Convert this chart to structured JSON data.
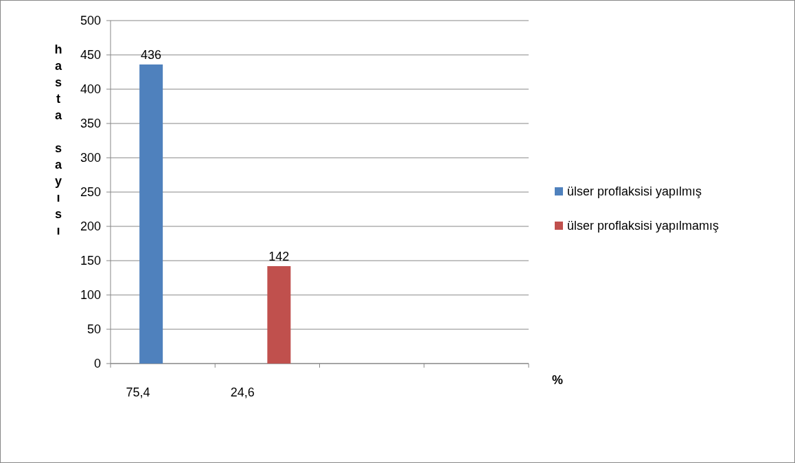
{
  "chart_data": {
    "type": "bar",
    "ylabel": "hasta sayısı",
    "xlabel": "%",
    "categories": [
      "75,4",
      "24,6",
      null,
      null
    ],
    "series": [
      {
        "name": "ülser proflaksisi yapılmış",
        "color": "#4f81bd",
        "values": [
          436,
          null,
          null,
          null
        ]
      },
      {
        "name": "ülser proflaksisi yapılmamış",
        "color": "#c0504d",
        "values": [
          null,
          142,
          null,
          null
        ]
      }
    ],
    "ylim": [
      0,
      500
    ],
    "yticks": [
      0,
      50,
      100,
      150,
      200,
      250,
      300,
      350,
      400,
      450,
      500
    ],
    "grid": "y",
    "legend": "right",
    "data_labels": true
  }
}
